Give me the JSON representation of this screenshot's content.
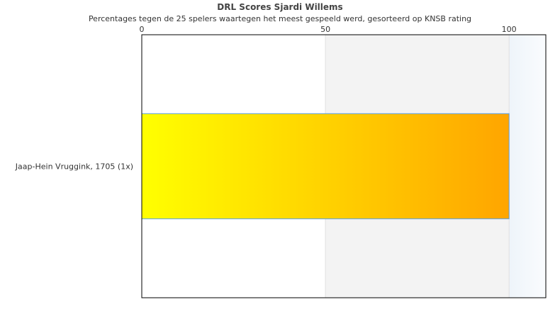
{
  "chart_data": {
    "type": "bar",
    "orientation": "horizontal",
    "title": "DRL Scores Sjardi Willems",
    "subtitle": "Percentages tegen de 25 spelers waartegen het meest gespeeld werd, gesorteerd op KNSB rating",
    "categories": [
      "Jaap-Hein Vruggink, 1705 (1x)"
    ],
    "values": [
      100
    ],
    "xlim": [
      0,
      110
    ],
    "xticks": [
      0,
      50,
      100
    ],
    "axis_position": "top",
    "bar_gradient": [
      "#ffff00",
      "#ffa500"
    ],
    "bar_border": "#5aa0e6",
    "bands": [
      {
        "from": 50,
        "to": 100,
        "color": "#f3f3f3"
      },
      {
        "from": 100,
        "to": 110,
        "color": "#f4f8fc"
      }
    ]
  }
}
